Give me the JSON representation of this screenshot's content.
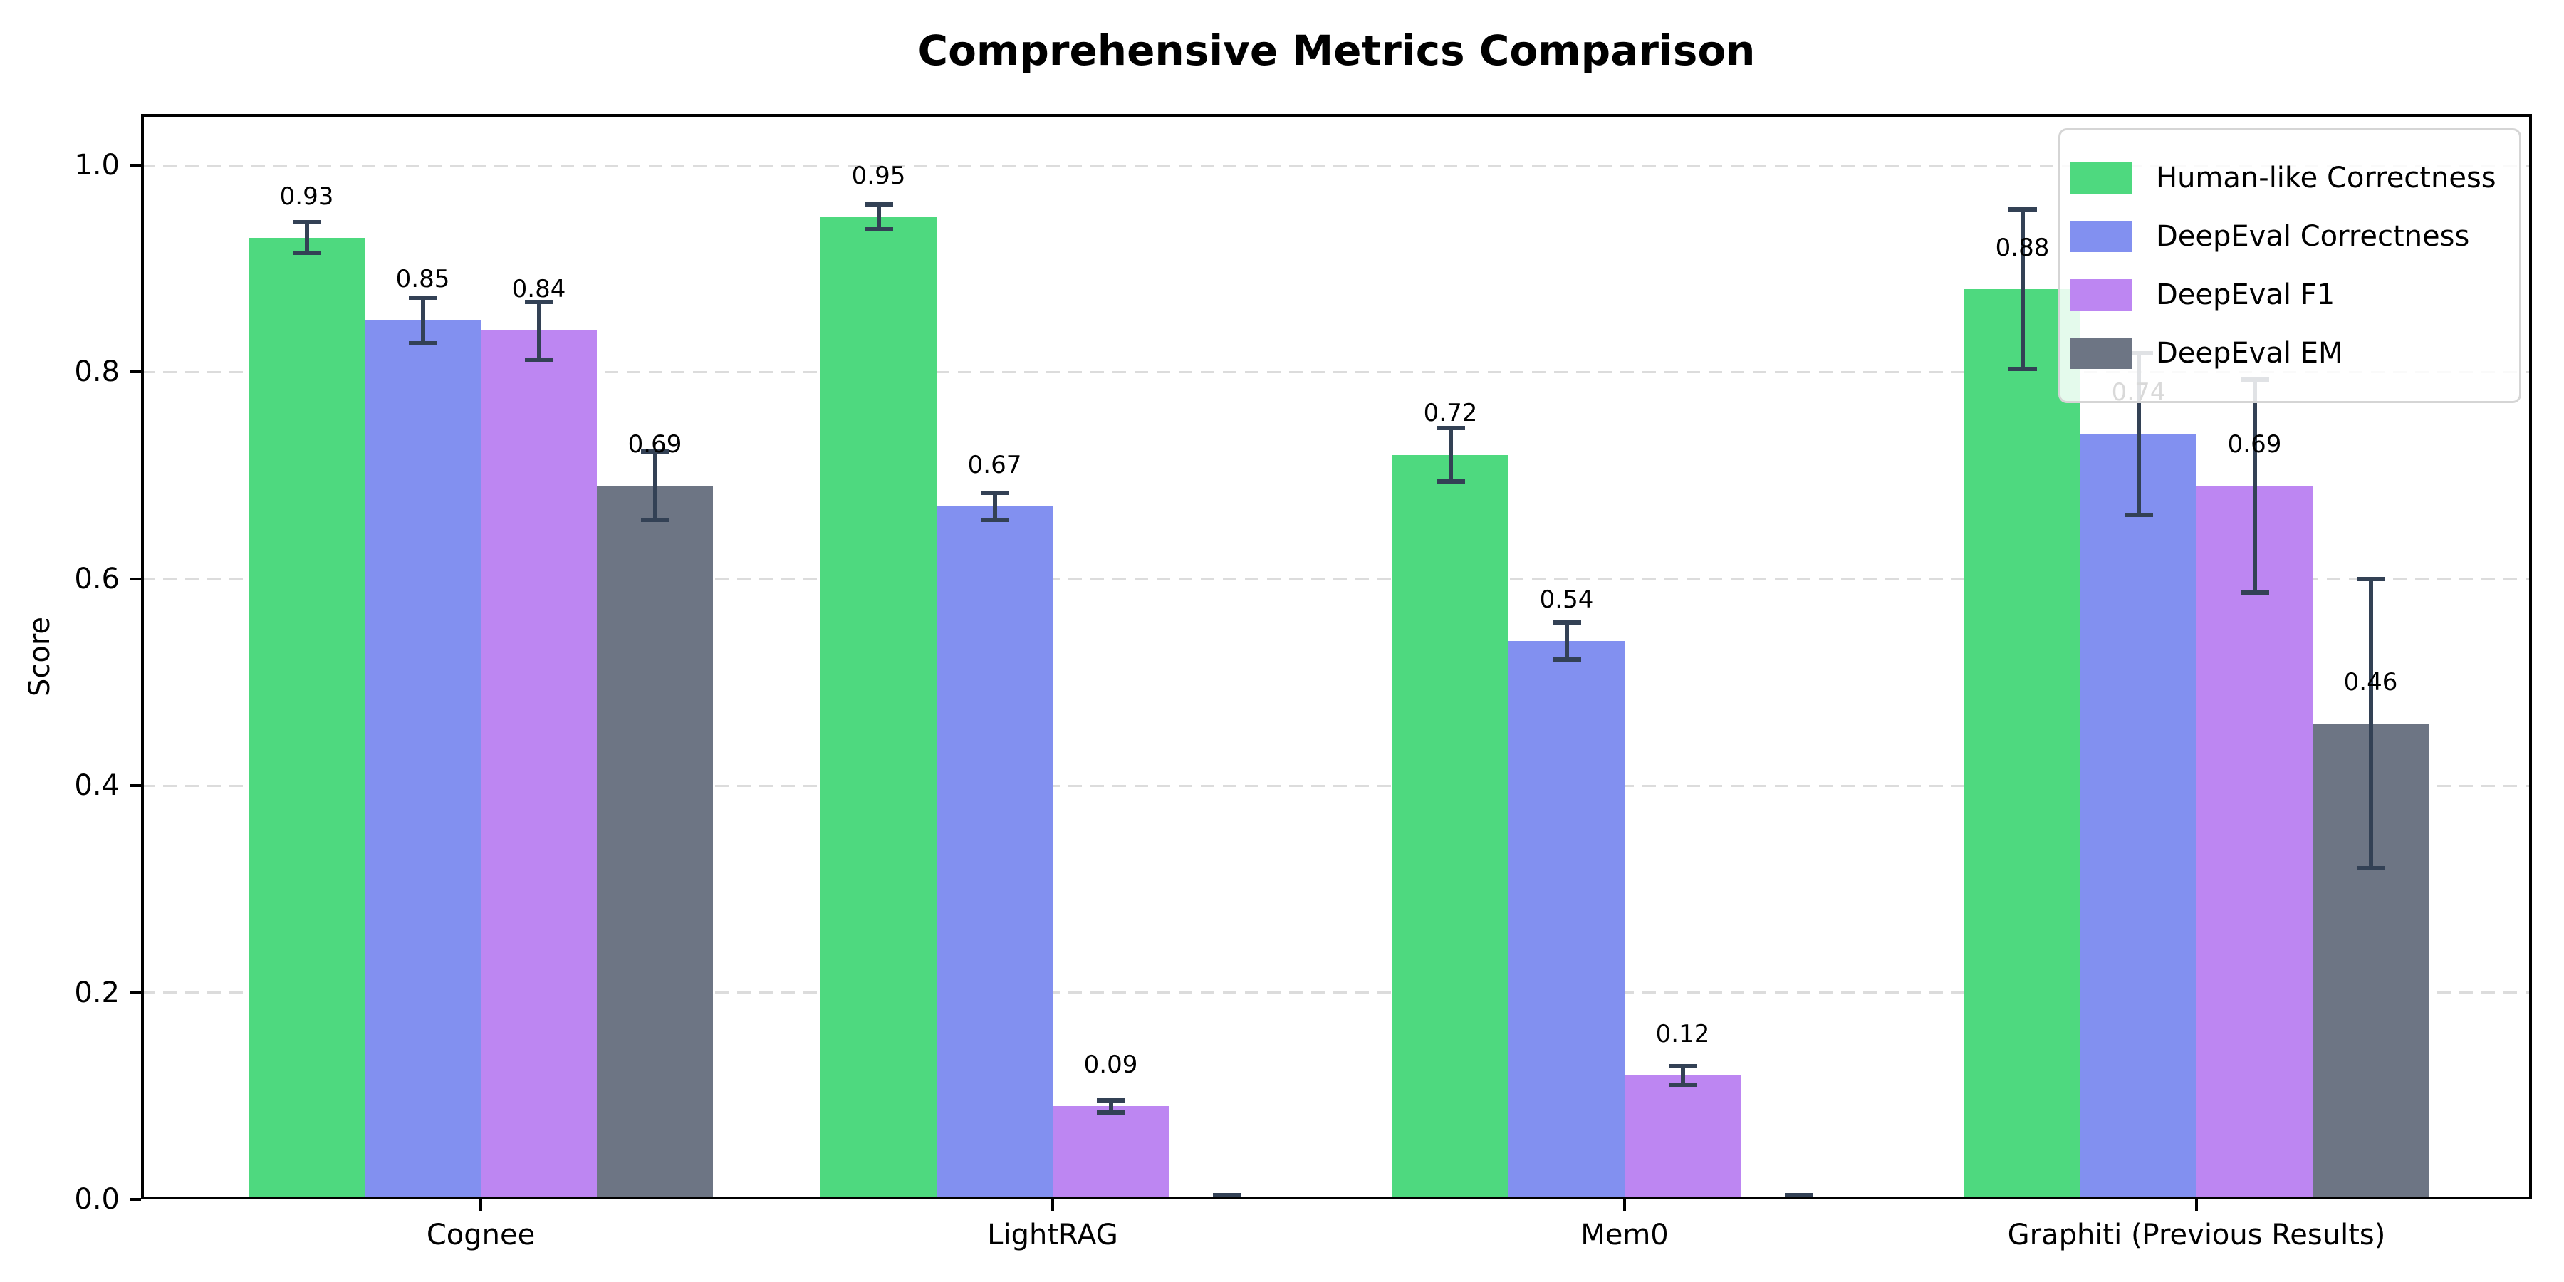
{
  "chart_data": {
    "type": "bar",
    "title": "Comprehensive Metrics Comparison",
    "xlabel": "",
    "ylabel": "Score",
    "categories": [
      "Cognee",
      "LightRAG",
      "Mem0",
      "Graphiti (Previous Results)"
    ],
    "series": [
      {
        "name": "Human-like Correctness",
        "color": "#4ed97f",
        "values": [
          0.93,
          0.95,
          0.72,
          0.88
        ],
        "errors": [
          0.015,
          0.012,
          0.026,
          0.077
        ],
        "labels": [
          "0.93",
          "0.95",
          "0.72",
          "0.88"
        ]
      },
      {
        "name": "DeepEval Correctness",
        "color": "#8290f0",
        "values": [
          0.85,
          0.67,
          0.54,
          0.74
        ],
        "errors": [
          0.022,
          0.013,
          0.018,
          0.078
        ],
        "labels": [
          "0.85",
          "0.67",
          "0.54",
          "0.74"
        ]
      },
      {
        "name": "DeepEval F1",
        "color": "#bd86f2",
        "values": [
          0.84,
          0.09,
          0.12,
          0.69
        ],
        "errors": [
          0.028,
          0.006,
          0.009,
          0.103
        ],
        "labels": [
          "0.84",
          "0.09",
          "0.12",
          "0.69"
        ]
      },
      {
        "name": "DeepEval EM",
        "color": "#6d7584",
        "values": [
          0.69,
          0.0,
          0.0,
          0.46
        ],
        "errors": [
          0.033,
          0.004,
          0.004,
          0.14
        ],
        "labels": [
          "0.69",
          "",
          "",
          "0.46"
        ]
      }
    ],
    "ytick_labels": [
      "0.0",
      "0.2",
      "0.4",
      "0.6",
      "0.8",
      "1.0"
    ],
    "yticks": [
      0.0,
      0.2,
      0.4,
      0.6,
      0.8,
      1.0
    ],
    "ylim": [
      0.0,
      1.05
    ],
    "grid": "horizontal-dashed",
    "legend_position": "upper right",
    "error_bar_color": "#334155",
    "axis_color": "#000000",
    "grid_color": "#dcdcdc",
    "background_color": "#ffffff"
  }
}
